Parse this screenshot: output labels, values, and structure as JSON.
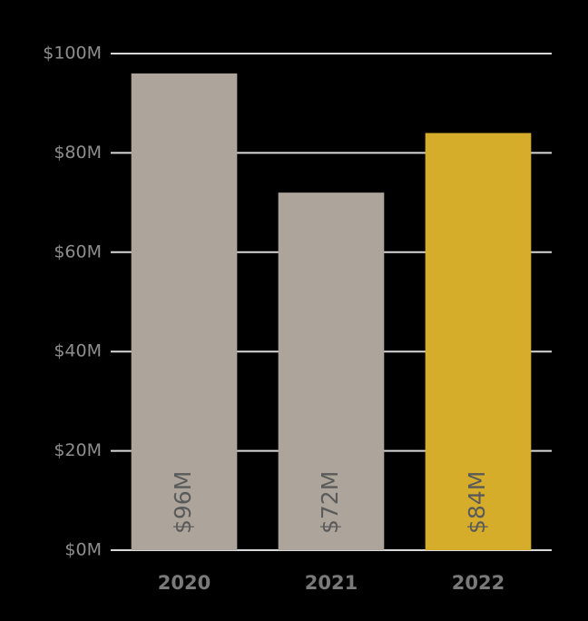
{
  "chart_data": {
    "type": "bar",
    "categories": [
      "2020",
      "2021",
      "2022"
    ],
    "values": [
      96,
      72,
      84
    ],
    "value_labels": [
      "$96M",
      "$72M",
      "$84M"
    ],
    "colors": [
      "#ada59b",
      "#ada59b",
      "#d6ad2b"
    ],
    "ylim": [
      0,
      100
    ],
    "yticks": [
      {
        "value": 0,
        "label": "$0M"
      },
      {
        "value": 20,
        "label": "$20M"
      },
      {
        "value": 40,
        "label": "$40M"
      },
      {
        "value": 60,
        "label": "$60M"
      },
      {
        "value": 80,
        "label": "$80M"
      },
      {
        "value": 100,
        "label": "$100M"
      }
    ],
    "grid": true
  }
}
